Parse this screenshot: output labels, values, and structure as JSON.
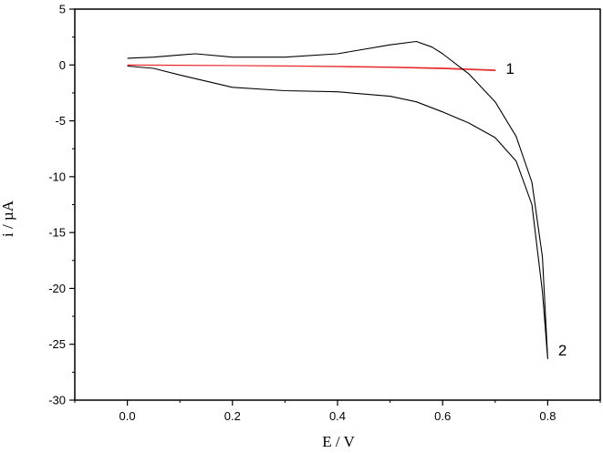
{
  "chart_data": {
    "type": "line",
    "title": "",
    "xlabel": "E / V",
    "ylabel": "i / µA",
    "xlim": [
      -0.1,
      0.9
    ],
    "ylim": [
      -30,
      5
    ],
    "xticks": [
      "0.0",
      "0.2",
      "0.4",
      "0.6",
      "0.8"
    ],
    "yticks": [
      "5",
      "0",
      "-5",
      "-10",
      "-15",
      "-20",
      "-25",
      "-30"
    ],
    "grid": false,
    "legend": "none",
    "series": [
      {
        "name": "1",
        "color": "#e8282b",
        "x": [
          0.0,
          0.1,
          0.2,
          0.3,
          0.4,
          0.5,
          0.6,
          0.7,
          0.7,
          0.6,
          0.5,
          0.4,
          0.3,
          0.2,
          0.1,
          0.0
        ],
        "y": [
          0.0,
          -0.02,
          -0.05,
          -0.08,
          -0.12,
          -0.18,
          -0.28,
          -0.45,
          -0.5,
          -0.33,
          -0.22,
          -0.15,
          -0.1,
          -0.06,
          -0.03,
          -0.01
        ]
      },
      {
        "name": "2",
        "color": "#000000",
        "x": [
          0.0,
          0.05,
          0.1,
          0.13,
          0.2,
          0.3,
          0.4,
          0.5,
          0.55,
          0.58,
          0.6,
          0.65,
          0.7,
          0.74,
          0.77,
          0.79,
          0.8,
          0.79,
          0.77,
          0.74,
          0.7,
          0.65,
          0.6,
          0.55,
          0.5,
          0.4,
          0.3,
          0.2,
          0.1,
          0.05,
          0.0
        ],
        "y": [
          0.6,
          0.7,
          0.9,
          1.0,
          0.7,
          0.7,
          1.0,
          1.8,
          2.1,
          1.6,
          1.0,
          -0.8,
          -3.3,
          -6.4,
          -10.5,
          -17.2,
          -26.3,
          -20.3,
          -12.5,
          -8.6,
          -6.5,
          -5.2,
          -4.2,
          -3.3,
          -2.8,
          -2.4,
          -2.3,
          -2.0,
          -0.9,
          -0.3,
          -0.1
        ]
      }
    ],
    "annotations": [
      {
        "text": "1",
        "x": 0.72,
        "y": -0.3
      },
      {
        "text": "2",
        "x": 0.82,
        "y": -25.5
      }
    ]
  }
}
